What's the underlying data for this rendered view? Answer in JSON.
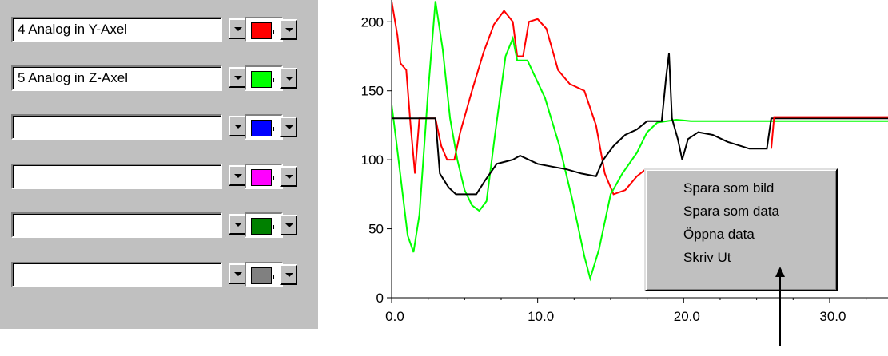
{
  "channels": [
    {
      "label": "4  Analog in Y-Axel",
      "color": "#ff0000"
    },
    {
      "label": "5  Analog in Z-Axel",
      "color": "#00ff00"
    },
    {
      "label": "",
      "color": "#0000ff"
    },
    {
      "label": "",
      "color": "#ff00ff"
    },
    {
      "label": "",
      "color": "#008000"
    },
    {
      "label": "",
      "color": "#808080"
    },
    {
      "label": "",
      "color": "#800080"
    }
  ],
  "context_menu": {
    "items": [
      {
        "label": "Spara som bild"
      },
      {
        "label": "Spara som data"
      },
      {
        "label": "Öppna data"
      },
      {
        "label": "Skriv Ut"
      }
    ]
  },
  "chart_data": {
    "type": "line",
    "xlim": [
      0,
      34
    ],
    "ylim": [
      0,
      210
    ],
    "x_ticks": [
      "0.0",
      "10.0",
      "20.0",
      "30.0"
    ],
    "y_ticks": [
      "0",
      "50",
      "100",
      "150",
      "200"
    ],
    "series": [
      {
        "color": "#ff0000",
        "points": [
          [
            0,
            215
          ],
          [
            0.4,
            190
          ],
          [
            0.6,
            170
          ],
          [
            1.0,
            165
          ],
          [
            1.3,
            125
          ],
          [
            1.6,
            90
          ],
          [
            1.9,
            130
          ],
          [
            3.0,
            130
          ],
          [
            3.4,
            110
          ],
          [
            3.8,
            100
          ],
          [
            4.3,
            100
          ],
          [
            4.7,
            120
          ],
          [
            5.5,
            150
          ],
          [
            6.3,
            178
          ],
          [
            7.0,
            198
          ],
          [
            7.7,
            208
          ],
          [
            8.3,
            200
          ],
          [
            8.6,
            175
          ],
          [
            9.0,
            175
          ],
          [
            9.4,
            200
          ],
          [
            10.0,
            202
          ],
          [
            10.6,
            195
          ],
          [
            11.4,
            165
          ],
          [
            12.2,
            155
          ],
          [
            13.2,
            150
          ],
          [
            14.0,
            125
          ],
          [
            14.6,
            90
          ],
          [
            15.2,
            75
          ],
          [
            16.0,
            78
          ],
          [
            16.8,
            88
          ],
          [
            17.4,
            93
          ]
        ]
      },
      {
        "color": "#00ff00",
        "points": [
          [
            0,
            140
          ],
          [
            0.3,
            115
          ],
          [
            0.7,
            80
          ],
          [
            1.1,
            45
          ],
          [
            1.5,
            33
          ],
          [
            1.9,
            60
          ],
          [
            2.5,
            150
          ],
          [
            3.0,
            215
          ],
          [
            3.5,
            180
          ],
          [
            4.0,
            130
          ],
          [
            4.5,
            100
          ],
          [
            5.0,
            78
          ],
          [
            5.5,
            67
          ],
          [
            6.0,
            63
          ],
          [
            6.5,
            70
          ],
          [
            7.1,
            120
          ],
          [
            7.8,
            175
          ],
          [
            8.3,
            188
          ],
          [
            8.6,
            172
          ],
          [
            9.3,
            172
          ],
          [
            10.5,
            145
          ],
          [
            11.5,
            110
          ],
          [
            12.4,
            70
          ],
          [
            13.2,
            30
          ],
          [
            13.6,
            14
          ],
          [
            14.2,
            35
          ],
          [
            15.0,
            75
          ],
          [
            15.8,
            90
          ],
          [
            16.8,
            105
          ],
          [
            17.5,
            120
          ],
          [
            18.2,
            127
          ],
          [
            19.5,
            129
          ],
          [
            20.5,
            128
          ],
          [
            26.5,
            128
          ],
          [
            34,
            128
          ]
        ]
      },
      {
        "color": "#000000",
        "points": [
          [
            0,
            130
          ],
          [
            3.0,
            130
          ],
          [
            3.3,
            90
          ],
          [
            3.9,
            80
          ],
          [
            4.4,
            75
          ],
          [
            5.8,
            75
          ],
          [
            6.4,
            85
          ],
          [
            7.2,
            97
          ],
          [
            8.3,
            100
          ],
          [
            8.8,
            103
          ],
          [
            10.0,
            97
          ],
          [
            11.0,
            95
          ],
          [
            12.0,
            93
          ],
          [
            13.0,
            90
          ],
          [
            14.0,
            88
          ],
          [
            14.5,
            100
          ],
          [
            15.2,
            110
          ],
          [
            16.0,
            118
          ],
          [
            16.8,
            122
          ],
          [
            17.5,
            128
          ],
          [
            18.5,
            128
          ],
          [
            18.8,
            160
          ],
          [
            19.0,
            177
          ],
          [
            19.2,
            130
          ],
          [
            19.6,
            115
          ],
          [
            19.9,
            100
          ],
          [
            20.3,
            115
          ],
          [
            21.0,
            120
          ],
          [
            22.0,
            118
          ],
          [
            23.0,
            113
          ],
          [
            24.5,
            108
          ],
          [
            25.7,
            108
          ],
          [
            26.0,
            130
          ],
          [
            34,
            130
          ]
        ]
      },
      {
        "color": "#ff0000",
        "points": [
          [
            26.0,
            108
          ],
          [
            26.2,
            131
          ],
          [
            34,
            131
          ]
        ]
      }
    ]
  }
}
